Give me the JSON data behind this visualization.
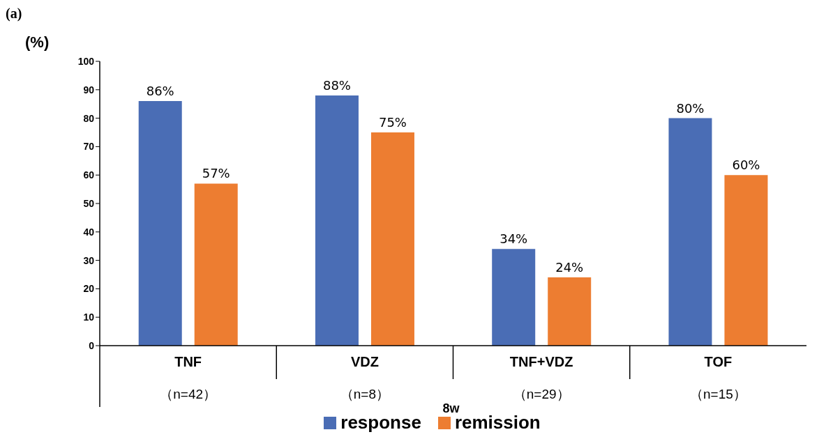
{
  "chart_data": {
    "type": "bar",
    "title": "(a)",
    "ylabel": "(%)",
    "categories": [
      "TNF\n（n=42）",
      "VDZ\n（n=8）",
      "TNF+VDZ\n（n=29）",
      "TOF\n（n=15）"
    ],
    "series": [
      {
        "name": "response",
        "color": "#4a6db5",
        "values": [
          86,
          88,
          34,
          80
        ],
        "value_labels": [
          "86%",
          "88%",
          "34%",
          "80%"
        ]
      },
      {
        "name": "remission",
        "color": "#ed7d31",
        "values": [
          57,
          75,
          24,
          60
        ],
        "value_labels": [
          "57%",
          "75%",
          "24%",
          "60%"
        ]
      }
    ],
    "ylim": [
      0,
      100
    ],
    "yticks": [
      0,
      10,
      20,
      30,
      40,
      50,
      60,
      70,
      80,
      90,
      100
    ],
    "legend": "bottom",
    "annotations": [
      "8w"
    ]
  }
}
